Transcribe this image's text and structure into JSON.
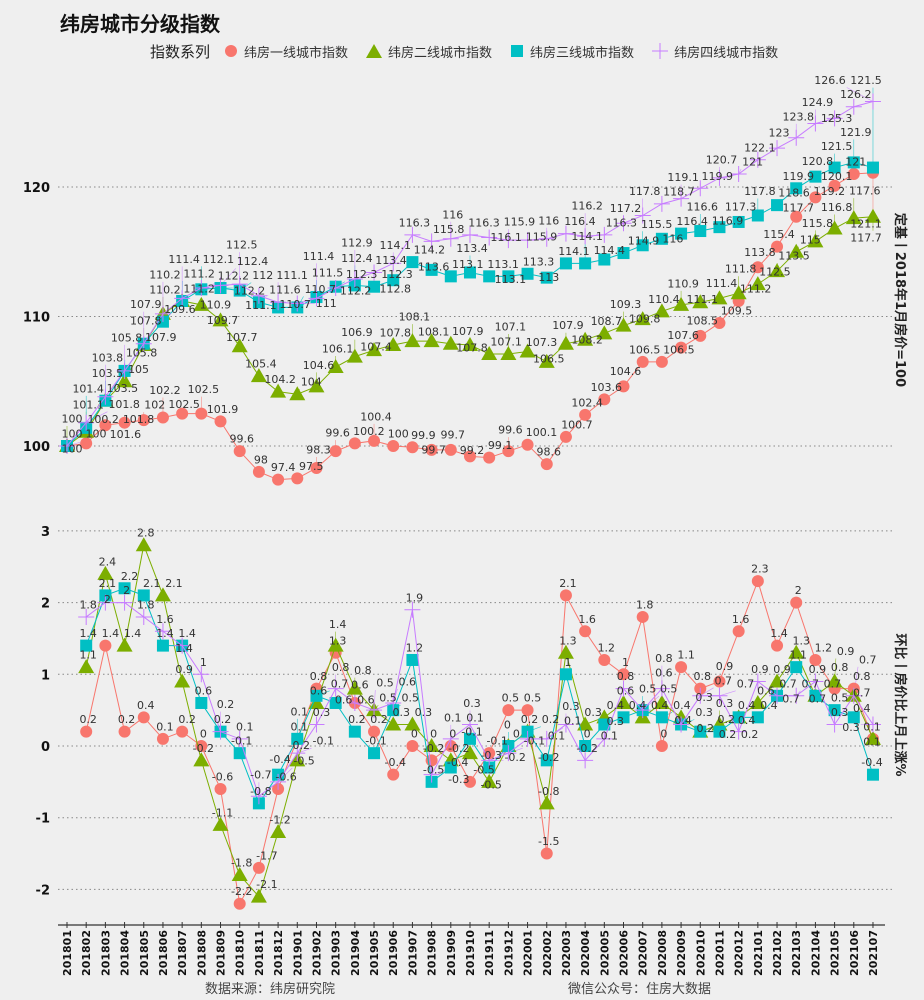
{
  "title": "纬房城市分级指数",
  "legend": {
    "title": "指数系列",
    "position": "top"
  },
  "footer": {
    "source": "数据来源：纬房研究院",
    "wechat": "微信公众号：住房大数据"
  },
  "chart_data": [
    {
      "type": "line",
      "ylabel": "定基丨2018年1月房价=100",
      "ylim": [
        96,
        128
      ],
      "yticks": [
        "100",
        "110",
        "120"
      ],
      "grid": true,
      "series": [
        {
          "name": "纬房一线城市指数",
          "color": "#F8766D",
          "marker": "circle",
          "values": [
            100,
            100.2,
            101.6,
            101.8,
            102,
            102.2,
            102.5,
            102.5,
            101.9,
            99.6,
            98,
            97.4,
            97.5,
            98.3,
            99.6,
            100.2,
            100.4,
            100,
            99.9,
            99.7,
            99.7,
            99.2,
            99.1,
            99.6,
            100.1,
            98.6,
            100.7,
            102.4,
            103.6,
            104.6,
            106.5,
            106.5,
            107.6,
            108.5,
            109.5,
            111.2,
            113.8,
            115.4,
            117.7,
            119.2,
            120.1,
            121,
            121.1
          ]
        },
        {
          "name": "纬房二线城市指数",
          "color": "#7CAE00",
          "marker": "triangle",
          "values": [
            100,
            101.1,
            103.5,
            105,
            107.8,
            110.2,
            111.2,
            110.9,
            109.7,
            107.7,
            105.4,
            104.2,
            104,
            104.6,
            106.1,
            106.9,
            107.4,
            107.8,
            108.1,
            108.1,
            107.9,
            107.8,
            107.1,
            107.1,
            107.3,
            106.5,
            107.9,
            108.2,
            108.7,
            109.3,
            109.8,
            110.4,
            110.9,
            111.1,
            111.4,
            111.8,
            112.5,
            113.5,
            115,
            115.8,
            116.8,
            117.6,
            117.7
          ]
        },
        {
          "name": "纬房三线城市指数",
          "color": "#00BFC4",
          "marker": "square",
          "values": [
            100,
            101.4,
            103.5,
            105.8,
            107.9,
            109.6,
            111.2,
            112.1,
            112.2,
            112,
            111.1,
            110.7,
            110.7,
            111.5,
            112.3,
            112.4,
            112.3,
            112.8,
            114.2,
            113.6,
            113.1,
            113.4,
            113.1,
            113.1,
            113.3,
            113,
            114.1,
            114.1,
            114.4,
            114.9,
            115.5,
            116,
            116.4,
            116.6,
            116.9,
            117.3,
            117.8,
            118.6,
            119.9,
            120.8,
            121.5,
            121.9,
            121.5
          ]
        },
        {
          "name": "纬房四线城市指数",
          "color": "#C77CFF",
          "marker": "plus",
          "values": [
            100,
            101.8,
            103.8,
            105.8,
            107.9,
            110.2,
            111.4,
            112.2,
            112.4,
            112.5,
            111.6,
            111.1,
            111,
            111.4,
            112.2,
            112.9,
            113.4,
            114.1,
            116.3,
            115.8,
            116,
            116.3,
            116.1,
            115.9,
            115.9,
            116,
            116.4,
            116.2,
            116.3,
            117.2,
            117.8,
            118.7,
            119.1,
            119.9,
            120.7,
            121,
            122.1,
            123,
            123.8,
            124.9,
            125.3,
            126.2,
            126.6
          ]
        }
      ]
    },
    {
      "type": "line",
      "ylabel": "环比丨房价比上月上涨%",
      "ylim": [
        -2.3,
        3.2
      ],
      "yticks": [
        "-2",
        "-1",
        "0",
        "1",
        "2",
        "3"
      ],
      "grid": true,
      "categories": [
        "201801",
        "201802",
        "201803",
        "201804",
        "201805",
        "201806",
        "201807",
        "201808",
        "201809",
        "201810",
        "201811",
        "201812",
        "201901",
        "201902",
        "201903",
        "201904",
        "201905",
        "201906",
        "201907",
        "201908",
        "201909",
        "201910",
        "201911",
        "201912",
        "202001",
        "202002",
        "202003",
        "202004",
        "202005",
        "202006",
        "202007",
        "202008",
        "202009",
        "202010",
        "202011",
        "202012",
        "202101",
        "202102",
        "202103",
        "202104",
        "202105",
        "202106",
        "202107"
      ],
      "series": [
        {
          "color": "#F8766D",
          "marker": "circle",
          "values": [
            null,
            0.2,
            1.4,
            0.2,
            0.4,
            0.1,
            0.2,
            0,
            -0.6,
            -2.2,
            -1.7,
            -0.6,
            0.1,
            0.8,
            1.3,
            0.6,
            0.2,
            -0.4,
            0,
            -0.2,
            0,
            -0.5,
            -0.1,
            0.5,
            0.5,
            -1.5,
            2.1,
            1.6,
            1.2,
            1,
            1.8,
            0,
            1.1,
            0.8,
            0.9,
            1.6,
            2.3,
            1.4,
            2,
            1.2,
            0.8,
            0.8,
            0.1
          ]
        },
        {
          "color": "#7CAE00",
          "marker": "triangle",
          "values": [
            null,
            1.1,
            2.4,
            1.4,
            2.8,
            2.1,
            0.9,
            -0.2,
            -1.1,
            -1.8,
            -2.1,
            -1.2,
            -0.2,
            0.6,
            1.4,
            0.8,
            0.5,
            0.3,
            0.3,
            0,
            -0.2,
            -0.1,
            -0.5,
            0,
            0.2,
            -0.8,
            1.3,
            0.3,
            0.4,
            0.6,
            0.4,
            0.6,
            0.4,
            0.2,
            0.3,
            0.4,
            0.6,
            0.9,
            1.3,
            0.7,
            0.9,
            0.7,
            0.1
          ]
        },
        {
          "color": "#00BFC4",
          "marker": "square",
          "values": [
            null,
            1.4,
            2.1,
            2.2,
            2.1,
            1.4,
            1.4,
            0.6,
            0.2,
            -0.1,
            -0.8,
            -0.4,
            0.1,
            0.7,
            0.6,
            0.2,
            -0.1,
            0.5,
            1.2,
            -0.5,
            -0.3,
            0.1,
            -0.3,
            0,
            0.2,
            -0.2,
            1,
            0,
            0.3,
            0.4,
            0.5,
            0.4,
            0.3,
            0.2,
            0.2,
            0.4,
            0.4,
            0.7,
            1.1,
            0.7,
            0.5,
            0.4,
            -0.4
          ]
        },
        {
          "color": "#C77CFF",
          "marker": "plus",
          "values": [
            null,
            1.8,
            2,
            2,
            1.8,
            1.6,
            1.4,
            1,
            0.2,
            0.1,
            -0.7,
            -0.5,
            -0.1,
            0.3,
            0.8,
            0.6,
            0.5,
            0.6,
            1.9,
            -0.4,
            0.1,
            0.3,
            -0.2,
            -0.1,
            0.1,
            0.1,
            0.3,
            -0.2,
            0.1,
            0.8,
            0.5,
            0.8,
            0.3,
            0.7,
            0.7,
            0.2,
            0.9,
            0.7,
            0.7,
            0.9,
            0.3,
            0.7,
            0.3
          ]
        }
      ]
    }
  ]
}
